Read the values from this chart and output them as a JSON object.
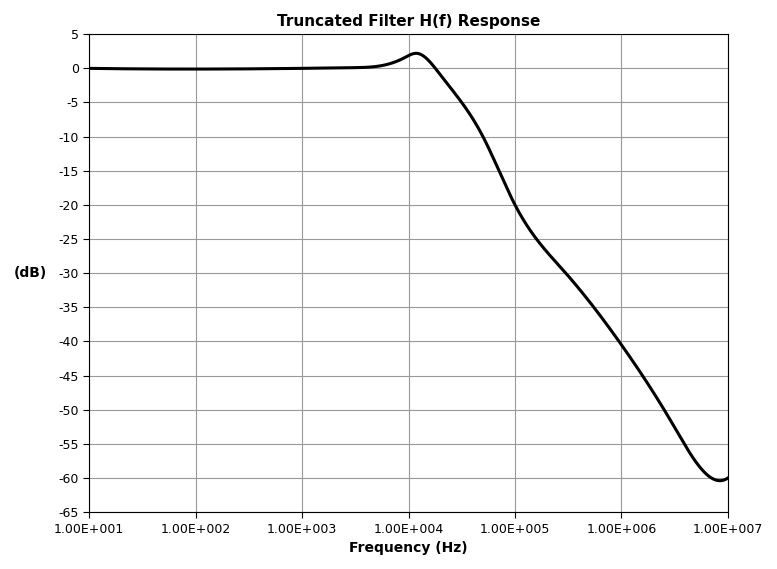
{
  "title": "Truncated Filter H(f) Response",
  "xlabel": "Frequency (Hz)",
  "ylabel": "(dB)",
  "xlim": [
    10,
    10000000
  ],
  "ylim": [
    -65,
    5
  ],
  "yticks": [
    5,
    0,
    -5,
    -10,
    -15,
    -20,
    -25,
    -30,
    -35,
    -40,
    -45,
    -50,
    -55,
    -60,
    -65
  ],
  "xtick_labels": [
    "1.00E+001",
    "1.00E+002",
    "1.00E+003",
    "1.00E+004",
    "1.00E+005",
    "1.00E+006",
    "1.00E+007"
  ],
  "xtick_values": [
    10,
    100,
    1000,
    10000,
    100000,
    1000000,
    10000000
  ],
  "line_color": "#000000",
  "line_width": 2.2,
  "background_color": "#ffffff",
  "grid_color": "#999999",
  "curve_freq": [
    10,
    1000,
    3000,
    6000,
    9000,
    12000,
    20000,
    50000,
    100000,
    300000,
    1000000,
    3000000,
    7000000,
    10000000
  ],
  "curve_db": [
    0.0,
    0.0,
    0.1,
    0.5,
    1.5,
    2.2,
    -1.0,
    -10.0,
    -20.0,
    -30.0,
    -40.5,
    -52.0,
    -60.0,
    -60.0
  ],
  "title_fontsize": 11,
  "label_fontsize": 10,
  "tick_fontsize": 9
}
